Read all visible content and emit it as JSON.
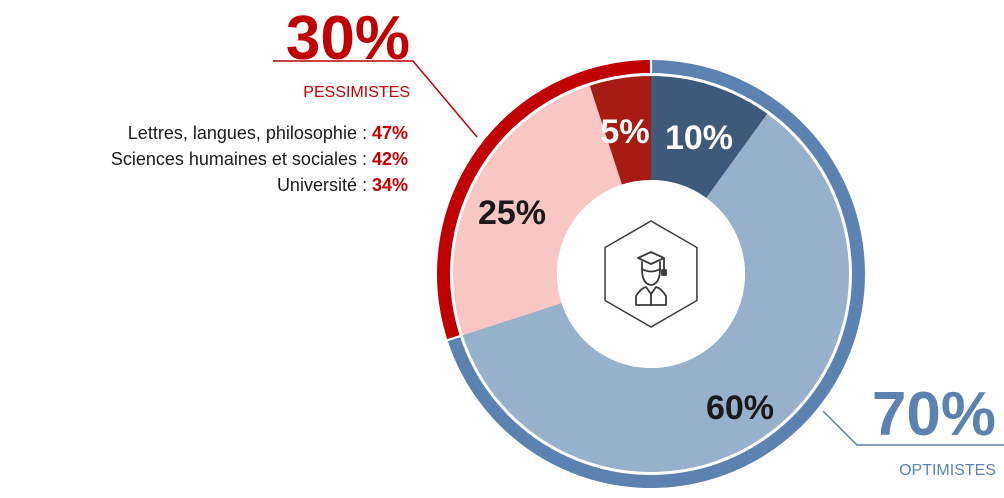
{
  "colors": {
    "pessimist": "#c00000",
    "optimist": "#5b82b0",
    "optimist_dark": "#3d5a7a",
    "optimist_light": "#97b0cc",
    "pessimist_light": "#f8c6c3",
    "pessimist_dark": "#a61c12",
    "label_dark": "#1a1a1a",
    "label_light": "#ffffff"
  },
  "pessimists": {
    "percent": "30%",
    "value": 30,
    "label": "PESSIMISTES",
    "breakdown": [
      {
        "label": "Lettres, langues, philosophie : ",
        "value": "47%"
      },
      {
        "label": "Sciences humaines et sociales : ",
        "value": "42%"
      },
      {
        "label": "Université : ",
        "value": "34%"
      }
    ]
  },
  "optimists": {
    "percent": "70%",
    "value": 70,
    "label": "OPTIMISTES"
  },
  "center_icon": "graduate-student-icon",
  "chart_data": {
    "type": "pie",
    "variant": "donut",
    "slices": [
      {
        "label": "10%",
        "value": 10,
        "color": "#3d5a7a",
        "label_color": "#ffffff",
        "group": "optimists"
      },
      {
        "label": "60%",
        "value": 60,
        "color": "#97b0cc",
        "label_color": "#1a1a1a",
        "group": "optimists"
      },
      {
        "label": "25%",
        "value": 25,
        "color": "#f8c6c3",
        "label_color": "#1a1a1a",
        "group": "pessimists"
      },
      {
        "label": "5%",
        "value": 5,
        "color": "#a61c12",
        "label_color": "#ffffff",
        "group": "pessimists"
      }
    ],
    "outer_groups": [
      {
        "label": "70%",
        "value": 70,
        "color": "#5b82b0"
      },
      {
        "label": "30%",
        "value": 30,
        "color": "#c00000"
      }
    ]
  }
}
